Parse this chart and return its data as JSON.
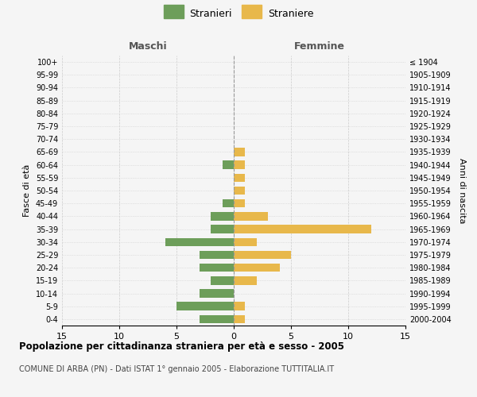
{
  "age_groups": [
    "0-4",
    "5-9",
    "10-14",
    "15-19",
    "20-24",
    "25-29",
    "30-34",
    "35-39",
    "40-44",
    "45-49",
    "50-54",
    "55-59",
    "60-64",
    "65-69",
    "70-74",
    "75-79",
    "80-84",
    "85-89",
    "90-94",
    "95-99",
    "100+"
  ],
  "birth_years": [
    "2000-2004",
    "1995-1999",
    "1990-1994",
    "1985-1989",
    "1980-1984",
    "1975-1979",
    "1970-1974",
    "1965-1969",
    "1960-1964",
    "1955-1959",
    "1950-1954",
    "1945-1949",
    "1940-1944",
    "1935-1939",
    "1930-1934",
    "1925-1929",
    "1920-1924",
    "1915-1919",
    "1910-1914",
    "1905-1909",
    "≤ 1904"
  ],
  "males": [
    3,
    5,
    3,
    2,
    3,
    3,
    6,
    2,
    2,
    1,
    0,
    0,
    1,
    0,
    0,
    0,
    0,
    0,
    0,
    0,
    0
  ],
  "females": [
    1,
    1,
    0,
    2,
    4,
    5,
    2,
    12,
    3,
    1,
    1,
    1,
    1,
    1,
    0,
    0,
    0,
    0,
    0,
    0,
    0
  ],
  "male_color": "#6d9e5a",
  "female_color": "#e8b84b",
  "title": "Popolazione per cittadinanza straniera per età e sesso - 2005",
  "subtitle": "COMUNE DI ARBA (PN) - Dati ISTAT 1° gennaio 2005 - Elaborazione TUTTITALIA.IT",
  "legend_male": "Stranieri",
  "legend_female": "Straniere",
  "header_left": "Maschi",
  "header_right": "Femmine",
  "ylabel_left": "Fasce di età",
  "ylabel_right": "Anni di nascita",
  "xlim": 15,
  "background_color": "#f5f5f5",
  "plot_background": "#f5f5f5",
  "grid_color": "#cccccc"
}
